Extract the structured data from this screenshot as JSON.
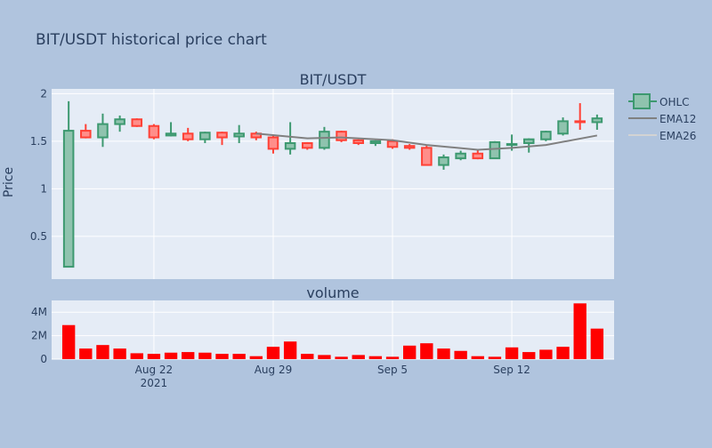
{
  "chart_data": [
    {
      "type": "candlestick",
      "title": "BIT/USDT historical price chart",
      "subplot_title": "BIT/USDT",
      "ylabel": "Price",
      "xlabel": "",
      "ylim": [
        0.05,
        2.05
      ],
      "yticks": [
        0.5,
        1,
        1.5,
        2
      ],
      "ytick_labels": [
        "0.5",
        "1",
        "1.5",
        "2"
      ],
      "xticks": [
        {
          "date": "2021-08-22",
          "label": "Aug 22",
          "sublabel": "2021"
        },
        {
          "date": "2021-08-29",
          "label": "Aug 29",
          "sublabel": ""
        },
        {
          "date": "2021-09-05",
          "label": "Sep 5",
          "sublabel": ""
        },
        {
          "date": "2021-09-12",
          "label": "Sep 12",
          "sublabel": ""
        }
      ],
      "xrange": [
        "2021-08-16",
        "2021-09-18"
      ],
      "grid": true,
      "legend": {
        "position": "right",
        "entries": [
          "OHLC",
          "EMA12",
          "EMA26"
        ]
      },
      "colors": {
        "up": "#3d9970",
        "up_fill": "#8fc3ae",
        "down": "#ff4136",
        "down_fill": "#ff8e8a",
        "ema12": "#808080",
        "ema26": "#d3d3d3",
        "plot_bg": "#e5ecf6",
        "paper_bg": "#b0c4de"
      },
      "series": [
        {
          "name": "OHLC",
          "dates": [
            "2021-08-17",
            "2021-08-18",
            "2021-08-19",
            "2021-08-20",
            "2021-08-21",
            "2021-08-22",
            "2021-08-23",
            "2021-08-24",
            "2021-08-25",
            "2021-08-26",
            "2021-08-27",
            "2021-08-28",
            "2021-08-29",
            "2021-08-30",
            "2021-08-31",
            "2021-09-01",
            "2021-09-02",
            "2021-09-03",
            "2021-09-04",
            "2021-09-05",
            "2021-09-06",
            "2021-09-07",
            "2021-09-08",
            "2021-09-09",
            "2021-09-10",
            "2021-09-11",
            "2021-09-12",
            "2021-09-13",
            "2021-09-14",
            "2021-09-15",
            "2021-09-16",
            "2021-09-17"
          ],
          "open": [
            0.18,
            1.61,
            1.54,
            1.68,
            1.73,
            1.66,
            1.56,
            1.58,
            1.52,
            1.59,
            1.55,
            1.58,
            1.54,
            1.42,
            1.48,
            1.43,
            1.6,
            1.51,
            1.48,
            1.5,
            1.45,
            1.43,
            1.25,
            1.32,
            1.37,
            1.32,
            1.47,
            1.48,
            1.52,
            1.58,
            1.71,
            1.7
          ],
          "high": [
            1.92,
            1.68,
            1.79,
            1.77,
            1.74,
            1.68,
            1.7,
            1.64,
            1.6,
            1.6,
            1.67,
            1.6,
            1.57,
            1.7,
            1.49,
            1.65,
            1.61,
            1.52,
            1.51,
            1.52,
            1.47,
            1.46,
            1.36,
            1.4,
            1.41,
            1.5,
            1.57,
            1.53,
            1.61,
            1.75,
            1.9,
            1.78
          ],
          "low": [
            0.18,
            1.53,
            1.44,
            1.6,
            1.65,
            1.52,
            1.55,
            1.5,
            1.48,
            1.46,
            1.48,
            1.51,
            1.37,
            1.36,
            1.41,
            1.41,
            1.49,
            1.46,
            1.45,
            1.42,
            1.41,
            1.25,
            1.2,
            1.3,
            1.31,
            1.32,
            1.4,
            1.38,
            1.5,
            1.56,
            1.62,
            1.62
          ],
          "close": [
            1.61,
            1.54,
            1.68,
            1.73,
            1.66,
            1.54,
            1.58,
            1.52,
            1.59,
            1.54,
            1.58,
            1.54,
            1.42,
            1.48,
            1.43,
            1.6,
            1.51,
            1.48,
            1.5,
            1.44,
            1.43,
            1.25,
            1.33,
            1.37,
            1.32,
            1.49,
            1.47,
            1.52,
            1.6,
            1.71,
            1.7,
            1.74
          ]
        },
        {
          "name": "EMA12",
          "dates": [
            "2021-08-28",
            "2021-08-31",
            "2021-09-02",
            "2021-09-05",
            "2021-09-07",
            "2021-09-10",
            "2021-09-12",
            "2021-09-14",
            "2021-09-17"
          ],
          "values": [
            1.58,
            1.53,
            1.54,
            1.51,
            1.46,
            1.41,
            1.43,
            1.46,
            1.56
          ]
        },
        {
          "name": "EMA26",
          "dates": [],
          "values": []
        }
      ]
    },
    {
      "type": "bar",
      "subplot_title": "volume",
      "ylim": [
        0,
        5000000
      ],
      "yticks": [
        0,
        2000000,
        4000000
      ],
      "ytick_labels": [
        "0",
        "2M",
        "4M"
      ],
      "dates": [
        "2021-08-17",
        "2021-08-18",
        "2021-08-19",
        "2021-08-20",
        "2021-08-21",
        "2021-08-22",
        "2021-08-23",
        "2021-08-24",
        "2021-08-25",
        "2021-08-26",
        "2021-08-27",
        "2021-08-28",
        "2021-08-29",
        "2021-08-30",
        "2021-08-31",
        "2021-09-01",
        "2021-09-02",
        "2021-09-03",
        "2021-09-04",
        "2021-09-05",
        "2021-09-06",
        "2021-09-07",
        "2021-09-08",
        "2021-09-09",
        "2021-09-10",
        "2021-09-11",
        "2021-09-12",
        "2021-09-13",
        "2021-09-14",
        "2021-09-15",
        "2021-09-16",
        "2021-09-17"
      ],
      "values": [
        2900000,
        900000,
        1200000,
        900000,
        500000,
        450000,
        550000,
        600000,
        550000,
        450000,
        450000,
        250000,
        1050000,
        1500000,
        450000,
        350000,
        200000,
        350000,
        250000,
        200000,
        1150000,
        1350000,
        900000,
        700000,
        250000,
        200000,
        1000000,
        600000,
        800000,
        1050000,
        4750000,
        2600000
      ],
      "color": "#ff0000"
    }
  ]
}
